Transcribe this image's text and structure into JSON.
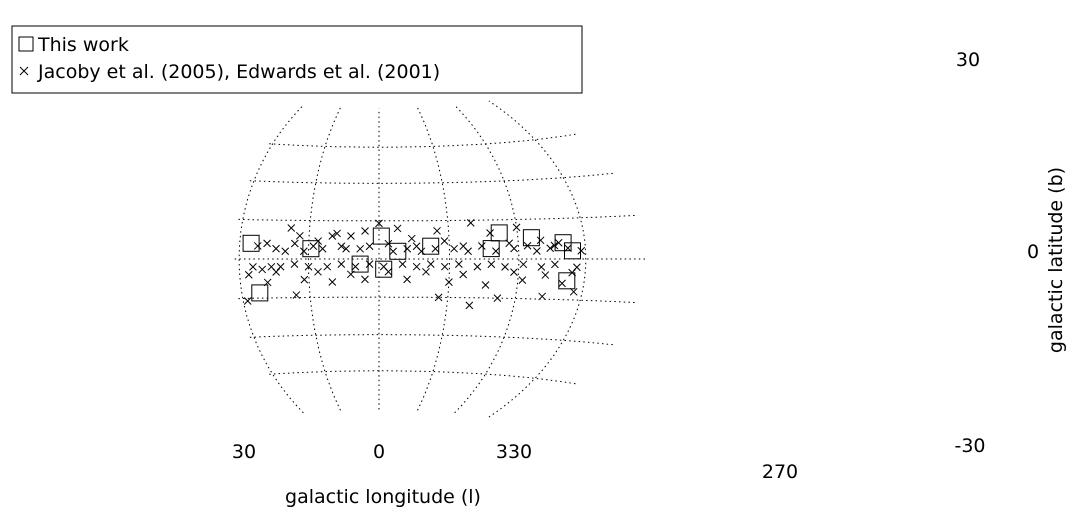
{
  "chart_data": {
    "type": "scatter",
    "projection": "Hammer-Aitoff (galactic)",
    "xlabel": "galactic longitude (l)",
    "ylabel": "galactic latitude (b)",
    "x_ticks": [
      "30",
      "0",
      "330",
      "270"
    ],
    "y_ticks": [
      "30",
      "0",
      "-30"
    ],
    "grid": true,
    "legend_position": "top-left",
    "series": [
      {
        "name": "This work",
        "marker": "square",
        "points": [
          [
            55,
            6
          ],
          [
            29,
            4
          ],
          [
            -1,
            9
          ],
          [
            -2,
            -4
          ],
          [
            8,
            -2
          ],
          [
            -8,
            3
          ],
          [
            -22,
            5
          ],
          [
            -52,
            10
          ],
          [
            -66,
            8
          ],
          [
            -82,
            -8
          ],
          [
            -84,
            3
          ],
          [
            52,
            -13
          ],
          [
            -48,
            4
          ],
          [
            -80,
            6
          ]
        ]
      },
      {
        "name": "Jacoby et al. (2005), Edwards et al. (2001)",
        "marker": "x",
        "points": [
          [
            38,
            12
          ],
          [
            34,
            9
          ],
          [
            26,
            7
          ],
          [
            20,
            9
          ],
          [
            18,
            10
          ],
          [
            12,
            9
          ],
          [
            6,
            11
          ],
          [
            0,
            14
          ],
          [
            -8,
            12
          ],
          [
            -14,
            8
          ],
          [
            -25,
            11
          ],
          [
            -40,
            14
          ],
          [
            -48,
            10
          ],
          [
            -60,
            12
          ],
          [
            -70,
            7
          ],
          [
            -78,
            6
          ],
          [
            36,
            6
          ],
          [
            28,
            5
          ],
          [
            16,
            5
          ],
          [
            4,
            5
          ],
          [
            -4,
            6
          ],
          [
            -16,
            5
          ],
          [
            -28,
            7
          ],
          [
            -36,
            5
          ],
          [
            -44,
            5
          ],
          [
            -56,
            6
          ],
          [
            -64,
            5
          ],
          [
            -76,
            5
          ],
          [
            52,
            5
          ],
          [
            48,
            6
          ],
          [
            44,
            4
          ],
          [
            40,
            3
          ],
          [
            32,
            3
          ],
          [
            24,
            4
          ],
          [
            14,
            4
          ],
          [
            8,
            4
          ],
          [
            -6,
            3
          ],
          [
            -12,
            4
          ],
          [
            -18,
            3
          ],
          [
            -24,
            4
          ],
          [
            -32,
            4
          ],
          [
            -38,
            3
          ],
          [
            -50,
            3
          ],
          [
            -58,
            4
          ],
          [
            -68,
            3
          ],
          [
            -74,
            4
          ],
          [
            -82,
            4
          ],
          [
            -88,
            3
          ],
          [
            54,
            -3
          ],
          [
            50,
            -4
          ],
          [
            46,
            -3
          ],
          [
            42,
            -3
          ],
          [
            36,
            -2
          ],
          [
            30,
            -3
          ],
          [
            22,
            -3
          ],
          [
            16,
            -2
          ],
          [
            10,
            -3
          ],
          [
            4,
            -2
          ],
          [
            -2,
            -3
          ],
          [
            -10,
            -2
          ],
          [
            -16,
            -3
          ],
          [
            -22,
            -2
          ],
          [
            -28,
            -3
          ],
          [
            -34,
            -2
          ],
          [
            -42,
            -3
          ],
          [
            -48,
            -2
          ],
          [
            -54,
            -3
          ],
          [
            -62,
            -2
          ],
          [
            -70,
            -3
          ],
          [
            -76,
            -2
          ],
          [
            -86,
            -3
          ],
          [
            56,
            -6
          ],
          [
            44,
            -5
          ],
          [
            26,
            -5
          ],
          [
            12,
            -6
          ],
          [
            -4,
            -5
          ],
          [
            -20,
            -5
          ],
          [
            -36,
            -6
          ],
          [
            -58,
            -5
          ],
          [
            -72,
            -6
          ],
          [
            -84,
            -5
          ],
          [
            48,
            -9
          ],
          [
            32,
            -8
          ],
          [
            20,
            -9
          ],
          [
            6,
            -8
          ],
          [
            -12,
            -8
          ],
          [
            -30,
            -9
          ],
          [
            -46,
            -10
          ],
          [
            -62,
            -8
          ],
          [
            -80,
            -9
          ],
          [
            58,
            -16
          ],
          [
            36,
            -14
          ],
          [
            -26,
            -15
          ],
          [
            -52,
            -15
          ],
          [
            -40,
            -18
          ],
          [
            -72,
            -14
          ],
          [
            -86,
            -12
          ]
        ]
      }
    ]
  }
}
